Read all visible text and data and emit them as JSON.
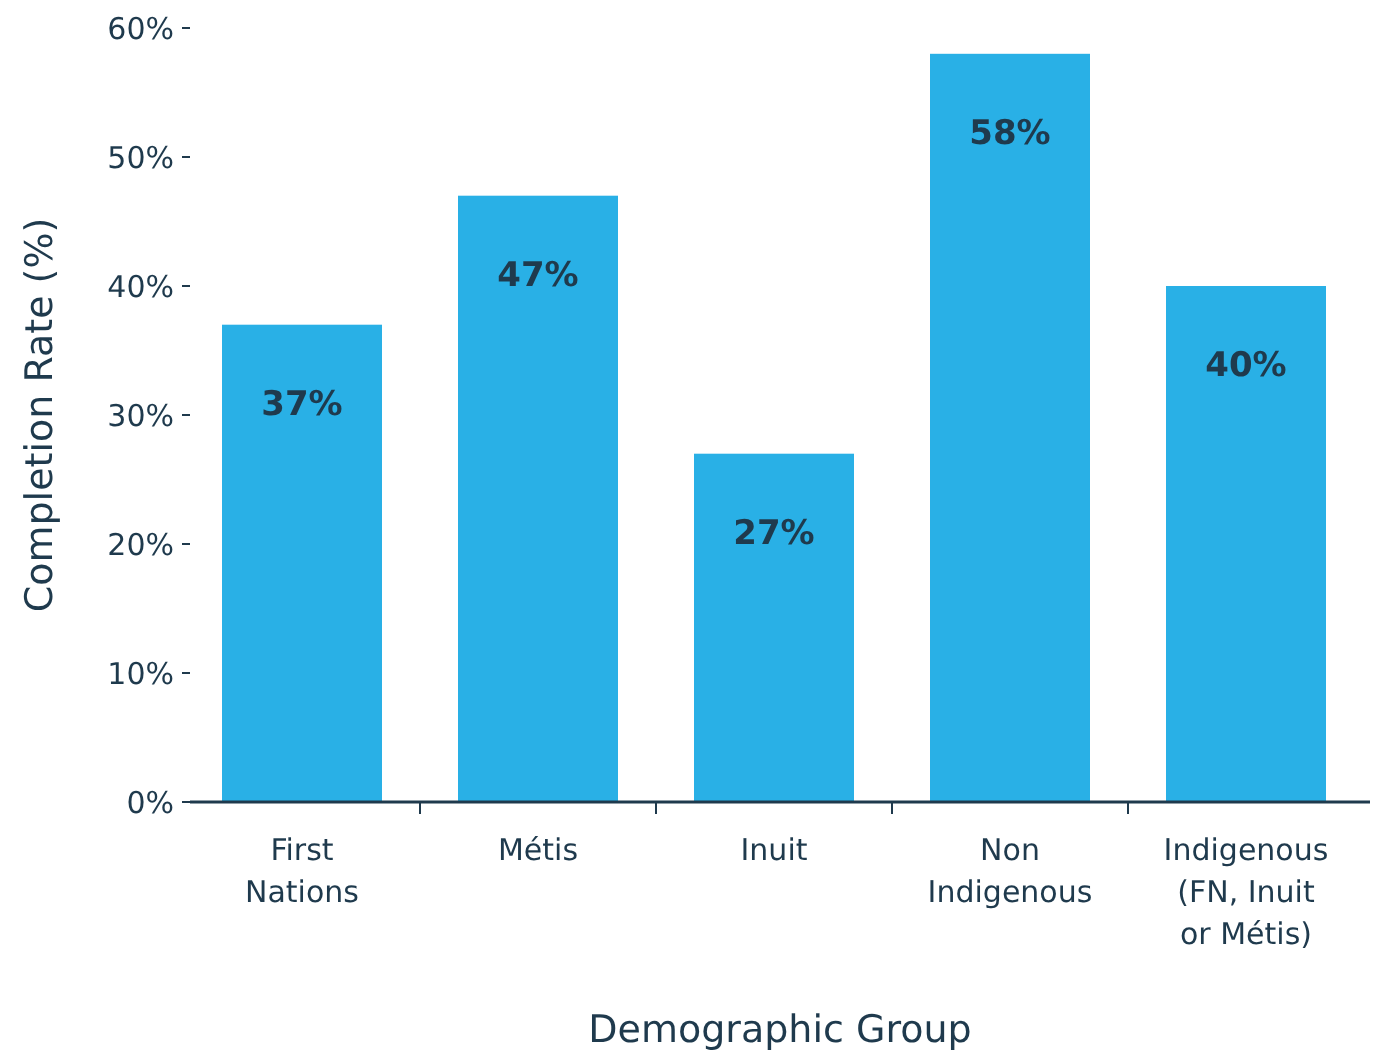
{
  "chart_data": {
    "type": "bar",
    "xlabel": "Demographic Group",
    "ylabel": "Completion Rate (%)",
    "categories": [
      "First Nations",
      "Métis",
      "Inuit",
      "Non Indigenous",
      "Indigenous (FN, Inuit or Métis)"
    ],
    "values": [
      37,
      47,
      27,
      58,
      40
    ],
    "value_labels": [
      "37%",
      "47%",
      "27%",
      "58%",
      "40%"
    ],
    "color": "#29b0e6",
    "ylim": [
      0,
      60
    ],
    "yticks": [
      {
        "value": 0,
        "label": "0%"
      },
      {
        "value": 10,
        "label": "10%"
      },
      {
        "value": 20,
        "label": "20%"
      },
      {
        "value": 30,
        "label": "30%"
      },
      {
        "value": 40,
        "label": "40%"
      },
      {
        "value": 50,
        "label": "50%"
      },
      {
        "value": 60,
        "label": "60%"
      }
    ],
    "grid": false
  }
}
